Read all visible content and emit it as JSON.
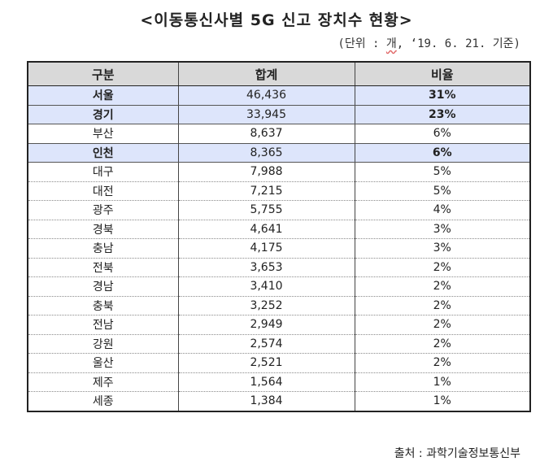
{
  "title": "<이동통신사별 5G 신고 장치수 현황>",
  "unit_note": {
    "prefix": "(단위 : ",
    "unit": "개",
    "suffix": ", ‘19. 6. 21. 기준)"
  },
  "table": {
    "headers": [
      "구분",
      "합계",
      "비율"
    ],
    "rows": [
      {
        "region": "서울",
        "total": "46,436",
        "ratio": "31%",
        "highlight": true
      },
      {
        "region": "경기",
        "total": "33,945",
        "ratio": "23%",
        "highlight": true
      },
      {
        "region": "부산",
        "total": "8,637",
        "ratio": "6%",
        "highlight": false
      },
      {
        "region": "인천",
        "total": "8,365",
        "ratio": "6%",
        "highlight": true
      },
      {
        "region": "대구",
        "total": "7,988",
        "ratio": "5%",
        "highlight": false
      },
      {
        "region": "대전",
        "total": "7,215",
        "ratio": "5%",
        "highlight": false
      },
      {
        "region": "광주",
        "total": "5,755",
        "ratio": "4%",
        "highlight": false
      },
      {
        "region": "경북",
        "total": "4,641",
        "ratio": "3%",
        "highlight": false
      },
      {
        "region": "충남",
        "total": "4,175",
        "ratio": "3%",
        "highlight": false
      },
      {
        "region": "전북",
        "total": "3,653",
        "ratio": "2%",
        "highlight": false
      },
      {
        "region": "경남",
        "total": "3,410",
        "ratio": "2%",
        "highlight": false
      },
      {
        "region": "충북",
        "total": "3,252",
        "ratio": "2%",
        "highlight": false
      },
      {
        "region": "전남",
        "total": "2,949",
        "ratio": "2%",
        "highlight": false
      },
      {
        "region": "강원",
        "total": "2,574",
        "ratio": "2%",
        "highlight": false
      },
      {
        "region": "울산",
        "total": "2,521",
        "ratio": "2%",
        "highlight": false
      },
      {
        "region": "제주",
        "total": "1,564",
        "ratio": "1%",
        "highlight": false
      },
      {
        "region": "세종",
        "total": "1,384",
        "ratio": "1%",
        "highlight": false
      }
    ]
  },
  "source": "출처 : 과학기술정보통신부",
  "colors": {
    "header_bg": "#d9d9d9",
    "highlight_bg": "#dde5fb"
  }
}
